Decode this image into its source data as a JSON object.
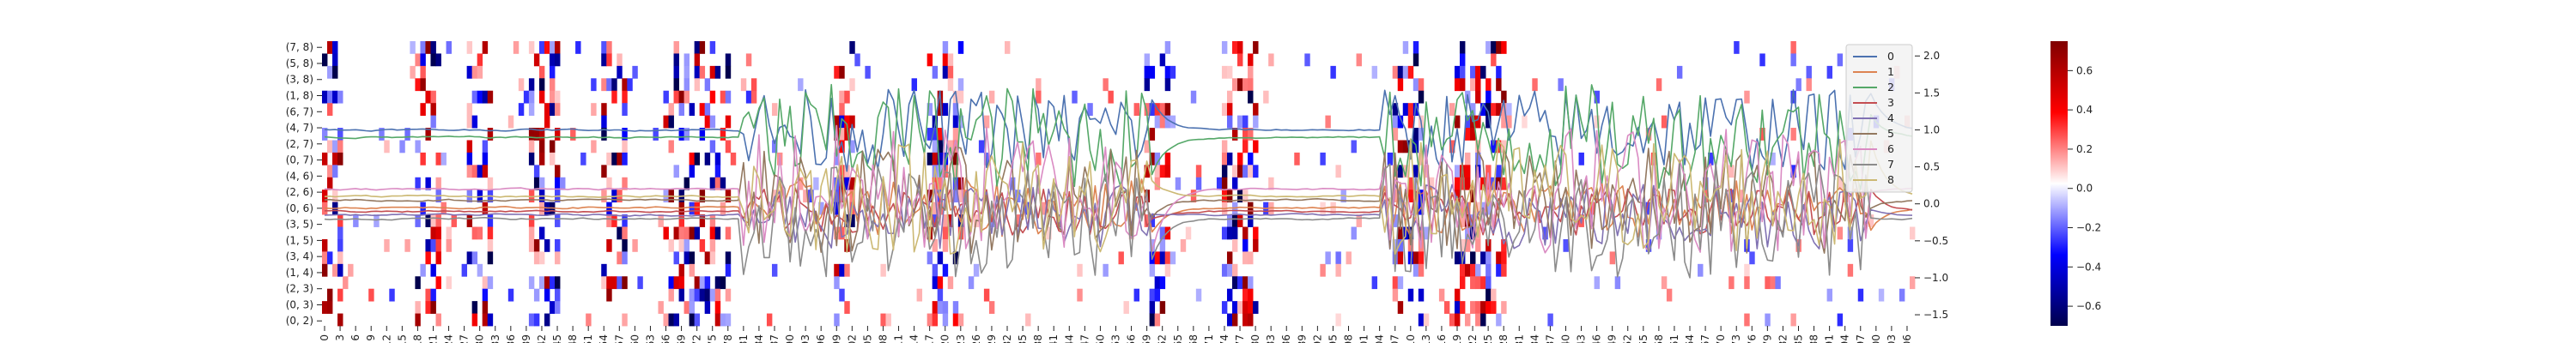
{
  "chart_data": {
    "type": "heatmap",
    "title": "",
    "xlabel": "",
    "ylabel": "",
    "heatmap": {
      "row_labels": [
        "(7, 8)",
        "(5, 8)",
        "(3, 8)",
        "(1, 8)",
        "(6, 7)",
        "(4, 7)",
        "(2, 7)",
        "(0, 7)",
        "(4, 6)",
        "(2, 6)",
        "(0, 6)",
        "(3, 5)",
        "(1, 5)",
        "(3, 4)",
        "(1, 4)",
        "(2, 3)",
        "(0, 3)",
        "(0, 2)"
      ],
      "row_count": 23,
      "column_count": 308,
      "x_tick_step": 3,
      "x_tick_labels": [
        "0",
        "3",
        "6",
        "9",
        "12",
        "15",
        "18",
        "21",
        "24",
        "27",
        "30",
        "33",
        "36",
        "39",
        "42",
        "45",
        "48",
        "51",
        "54",
        "57",
        "60",
        "63",
        "66",
        "69",
        "72",
        "75",
        "78",
        "81",
        "84",
        "87",
        "90",
        "93",
        "96",
        "99",
        "102",
        "105",
        "108",
        "111",
        "114",
        "117",
        "120",
        "123",
        "126",
        "129",
        "132",
        "135",
        "138",
        "141",
        "144",
        "147",
        "150",
        "153",
        "156",
        "159",
        "162",
        "165",
        "168",
        "171",
        "174",
        "177",
        "180",
        "183",
        "186",
        "189",
        "192",
        "195",
        "198",
        "201",
        "204",
        "207",
        "210",
        "213",
        "216",
        "219",
        "222",
        "225",
        "228",
        "231",
        "234",
        "237",
        "240",
        "243",
        "246",
        "249",
        "252",
        "255",
        "258",
        "261",
        "264",
        "267",
        "270",
        "273",
        "276",
        "279",
        "282",
        "285",
        "288",
        "291",
        "294",
        "297",
        "300",
        "303",
        "306"
      ],
      "colormap": "seismic",
      "vmin": -0.7,
      "vmax": 0.75,
      "active_column_bands": [
        [
          0,
          3
        ],
        [
          18,
          22
        ],
        [
          28,
          32
        ],
        [
          40,
          45
        ],
        [
          54,
          58
        ],
        [
          66,
          78
        ],
        [
          99,
          102
        ],
        [
          117,
          123
        ],
        [
          159,
          163
        ],
        [
          174,
          180
        ],
        [
          207,
          212
        ],
        [
          219,
          228
        ]
      ]
    },
    "colorbar": {
      "ticks": [
        "0.6",
        "0.4",
        "0.2",
        "0.0",
        "−0.2",
        "−0.4",
        "−0.6"
      ],
      "tick_values": [
        0.6,
        0.4,
        0.2,
        0.0,
        -0.2,
        -0.4,
        -0.6
      ]
    },
    "line_overlay": {
      "y_axis_side": "right",
      "y_ticks": [
        "2.0",
        "1.5",
        "1.0",
        "0.5",
        "0.0",
        "−0.5",
        "−1.0",
        "−1.5"
      ],
      "y_tick_values": [
        2.0,
        1.5,
        1.0,
        0.5,
        0.0,
        -0.5,
        -1.0,
        -1.5
      ],
      "ylim": [
        -1.65,
        2.2
      ],
      "legend_position": "top-right",
      "series": [
        {
          "name": "0",
          "color": "#4c72b0"
        },
        {
          "name": "1",
          "color": "#dd8452"
        },
        {
          "name": "2",
          "color": "#55a868"
        },
        {
          "name": "3",
          "color": "#c44e52"
        },
        {
          "name": "4",
          "color": "#8172b3"
        },
        {
          "name": "5",
          "color": "#937860"
        },
        {
          "name": "6",
          "color": "#da8bc3"
        },
        {
          "name": "7",
          "color": "#8c8c8c"
        },
        {
          "name": "8",
          "color": "#ccb974"
        }
      ]
    }
  }
}
